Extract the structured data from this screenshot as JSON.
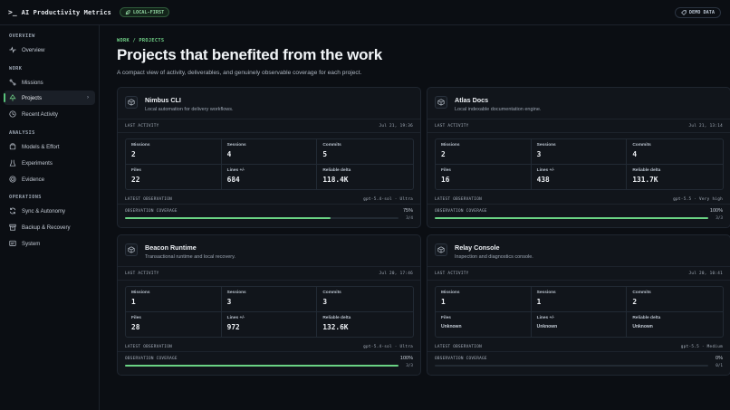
{
  "app": {
    "prompt": ">_",
    "title": "AI Productivity Metrics",
    "local_badge": "LOCAL-FIRST",
    "demo_badge": "DEMO DATA",
    "accent": "#6fcf86"
  },
  "sidebar": {
    "sections": [
      {
        "title": "OVERVIEW",
        "items": [
          {
            "label": "Overview",
            "icon": "pulse-icon"
          }
        ]
      },
      {
        "title": "WORK",
        "items": [
          {
            "label": "Missions",
            "icon": "route-icon"
          },
          {
            "label": "Projects",
            "icon": "tree-icon",
            "active": true
          },
          {
            "label": "Recent Activity",
            "icon": "clock-icon"
          }
        ]
      },
      {
        "title": "ANALYSIS",
        "items": [
          {
            "label": "Models & Effort",
            "icon": "box-icon"
          },
          {
            "label": "Experiments",
            "icon": "flask-icon"
          },
          {
            "label": "Evidence",
            "icon": "target-icon"
          }
        ]
      },
      {
        "title": "OPERATIONS",
        "items": [
          {
            "label": "Sync & Autonomy",
            "icon": "sync-icon"
          },
          {
            "label": "Backup & Recovery",
            "icon": "archive-icon"
          },
          {
            "label": "System",
            "icon": "monitor-icon"
          }
        ]
      }
    ]
  },
  "main": {
    "breadcrumb": "WORK / PROJECTS",
    "title": "Projects that benefited from the work",
    "subtitle": "A compact view of activity, deliverables, and genuinely observable coverage for each project."
  },
  "labels": {
    "last_activity": "LAST ACTIVITY",
    "missions": "Missions",
    "sessions": "Sessions",
    "commits": "Commits",
    "files": "Files",
    "lines": "Lines +/-",
    "reliable_delta": "Reliable delta",
    "latest_observation": "LATEST OBSERVATION",
    "observation_coverage": "OBSERVATION COVERAGE"
  },
  "projects": [
    {
      "name": "Nimbus CLI",
      "desc": "Local automation for delivery workflows.",
      "last_activity": "Jul 21, 19:36",
      "missions": "2",
      "sessions": "4",
      "commits": "5",
      "files": "22",
      "lines": "684",
      "reliable_delta": "118.4K",
      "observation": "gpt-5.4-sol · Ultra",
      "coverage_pct": "75%",
      "coverage_fraction": 0.75,
      "coverage_count": "3/4",
      "lower_small": false
    },
    {
      "name": "Atlas Docs",
      "desc": "Local indexable documentation engine.",
      "last_activity": "Jul 21, 13:14",
      "missions": "2",
      "sessions": "3",
      "commits": "4",
      "files": "16",
      "lines": "438",
      "reliable_delta": "131.7K",
      "observation": "gpt-5.5 · Very high",
      "coverage_pct": "100%",
      "coverage_fraction": 1.0,
      "coverage_count": "3/3",
      "lower_small": false
    },
    {
      "name": "Beacon Runtime",
      "desc": "Transactional runtime and local recovery.",
      "last_activity": "Jul 20, 17:46",
      "missions": "1",
      "sessions": "3",
      "commits": "3",
      "files": "28",
      "lines": "972",
      "reliable_delta": "132.6K",
      "observation": "gpt-5.4-sol · Ultra",
      "coverage_pct": "100%",
      "coverage_fraction": 1.0,
      "coverage_count": "3/3",
      "lower_small": false
    },
    {
      "name": "Relay Console",
      "desc": "Inspection and diagnostics console.",
      "last_activity": "Jul 20, 10:41",
      "missions": "1",
      "sessions": "1",
      "commits": "2",
      "files": "Unknown",
      "lines": "Unknown",
      "reliable_delta": "Unknown",
      "observation": "gpt-5.5 · Medium",
      "coverage_pct": "0%",
      "coverage_fraction": 0.0,
      "coverage_count": "0/1",
      "lower_small": true
    }
  ]
}
